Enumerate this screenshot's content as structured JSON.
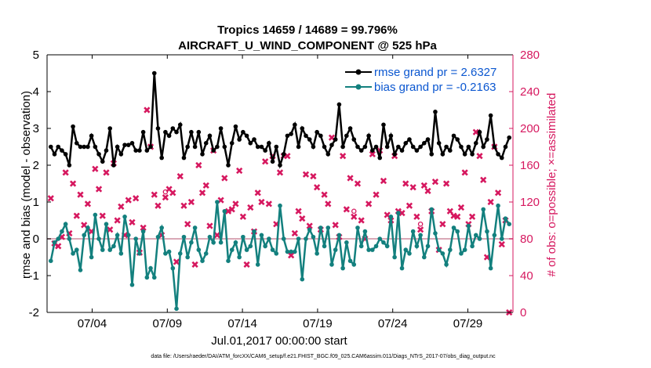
{
  "chart_data": {
    "type": "line",
    "title_line1": "Tropics 14659 / 14689 = 99.796%",
    "title_line2": "AIRCRAFT_U_WIND_COMPONENT @ 525 hPa",
    "xlabel": "Jul.01,2017 00:00:00 start",
    "ylabel_left": "rmse and bias (model - observation)",
    "ylabel_right": "# of obs: o=possible; ×=assimilated",
    "x_range_days": [
      0,
      31
    ],
    "ylim_left": [
      -2,
      5
    ],
    "ylim_right": [
      0,
      280
    ],
    "yticks_left": [
      "-2",
      "-1",
      "0",
      "1",
      "2",
      "3",
      "4",
      "5"
    ],
    "yticks_right": [
      "0",
      "40",
      "80",
      "120",
      "160",
      "200",
      "240",
      "280"
    ],
    "xticks": [
      {
        "day": 3.0,
        "label": "07/04"
      },
      {
        "day": 8.0,
        "label": "07/09"
      },
      {
        "day": 13.0,
        "label": "07/14"
      },
      {
        "day": 18.0,
        "label": "07/19"
      },
      {
        "day": 23.0,
        "label": "07/24"
      },
      {
        "day": 28.0,
        "label": "07/29"
      }
    ],
    "colors": {
      "rmse": "#000000",
      "bias": "#13807e",
      "obs": "#d6185f",
      "zero": "#d9a8b6"
    },
    "series": [
      {
        "name": "rmse grand pr = 2.6327",
        "values": [
          2.5,
          2.3,
          2.5,
          2.4,
          2.3,
          2.0,
          3.05,
          2.6,
          2.5,
          2.5,
          2.5,
          2.8,
          2.5,
          2.3,
          2.1,
          2.4,
          3.0,
          2.0,
          2.5,
          2.3,
          2.55,
          2.55,
          2.6,
          2.4,
          2.4,
          2.9,
          2.4,
          2.5,
          4.5,
          3.0,
          2.2,
          2.9,
          2.8,
          3.0,
          2.9,
          3.1,
          2.2,
          2.5,
          2.9,
          2.5,
          2.9,
          2.3,
          2.6,
          2.8,
          2.4,
          2.5,
          3.0,
          2.5,
          2.0,
          2.6,
          3.05,
          2.7,
          2.9,
          2.8,
          2.6,
          2.7,
          2.5,
          2.5,
          2.4,
          2.6,
          2.1,
          2.5,
          2.0,
          2.3,
          2.8,
          2.85,
          3.1,
          2.5,
          3.0,
          2.8,
          2.7,
          2.5,
          2.9,
          2.8,
          2.5,
          2.3,
          2.55,
          2.7,
          3.65,
          2.5,
          2.8,
          3.0,
          2.7,
          2.5,
          2.4,
          2.5,
          2.8,
          2.4,
          2.5,
          2.2,
          3.1,
          2.5,
          2.8,
          2.3,
          2.5,
          2.4,
          2.6,
          2.7,
          2.5,
          2.4,
          2.5,
          2.6,
          2.7,
          2.3,
          3.45,
          2.6,
          2.3,
          2.5,
          2.4,
          2.8,
          2.7,
          2.5,
          2.3,
          2.5,
          2.3,
          2.6,
          2.9,
          2.5,
          2.7,
          3.35,
          2.5,
          2.3,
          2.2,
          2.5,
          2.75
        ],
        "points_with_nan": [
          {
            "day": 14.0
          },
          {
            "day": 25.5
          }
        ]
      },
      {
        "name": "bias grand pr = -0.2163",
        "values": [
          -0.6,
          -0.1,
          0.0,
          0.2,
          0.4,
          0.0,
          -0.4,
          -0.3,
          -0.85,
          0.1,
          0.3,
          -0.5,
          0.65,
          0.0,
          -0.3,
          0.4,
          -0.3,
          -0.2,
          0.1,
          -0.4,
          0.6,
          0.1,
          -1.25,
          0.0,
          -0.4,
          0.2,
          -1.05,
          -0.8,
          -1.05,
          0.05,
          0.3,
          -0.4,
          -0.35,
          -0.8,
          -1.9,
          -0.4,
          0.05,
          -0.5,
          -0.1,
          0.3,
          -0.3,
          -0.6,
          -0.4,
          0.05,
          -0.1,
          1.0,
          -0.1,
          0.75,
          -0.6,
          -0.3,
          -0.1,
          -0.5,
          0.05,
          -0.3,
          -0.2,
          0.2,
          -0.7,
          0.1,
          -0.2,
          0.0,
          -0.3,
          -0.4,
          0.9,
          0.0,
          -0.35,
          -0.35,
          -0.35,
          0.0,
          -1.1,
          0.0,
          0.25,
          0.05,
          -0.4,
          0.3,
          -0.2,
          0.3,
          -0.7,
          -0.3,
          0.1,
          -0.8,
          -0.1,
          -0.6,
          -0.7,
          0.3,
          -0.2,
          0.2,
          -0.3,
          -0.3,
          -0.2,
          0.0,
          -0.1,
          -0.2,
          0.6,
          -0.5,
          0.7,
          -0.8,
          -0.3,
          -0.4,
          0.2,
          -0.2,
          0.1,
          -0.5,
          -0.2,
          0.8,
          0.15,
          -0.3,
          -0.4,
          -0.7,
          -0.3,
          0.3,
          0.2,
          -0.4,
          -0.3,
          0.35,
          -0.2,
          0.1,
          0.0,
          0.8,
          0.2,
          -0.8,
          0.1,
          0.9,
          0.0,
          0.55,
          0.4
        ]
      },
      {
        "name": "obs assimilated (×)",
        "values": [
          124,
          75,
          72,
          82,
          152,
          86,
          140,
          105,
          128,
          95,
          118,
          88,
          156,
          134,
          105,
          152,
          90,
          162,
          100,
          115,
          84,
          122,
          98,
          124,
          65,
          92,
          220,
          180,
          128,
          116,
          84,
          125,
          134,
          130,
          55,
          148,
          116,
          96,
          120,
          52,
          160,
          130,
          138,
          94,
          176,
          84,
          122,
          146,
          110,
          112,
          118,
          154,
          104,
          52,
          114,
          88,
          130,
          120,
          164,
          118,
          170,
          96,
          152,
          170,
          170,
          62,
          86,
          110,
          102,
          150,
          94,
          148,
          136,
          90,
          128,
          118,
          190,
          95,
          82,
          170,
          112,
          146,
          104,
          140,
          100,
          80,
          118,
          172,
          128,
          176,
          143,
          106,
          100,
          170,
          110,
          108,
          140,
          116,
          136,
          104,
          90,
          138,
          132,
          110,
          142,
          68,
          96,
          140,
          110,
          105,
          104,
          114,
          152,
          96,
          104,
          196,
          170,
          144,
          60,
          120,
          180,
          130,
          74,
          100,
          0
        ]
      },
      {
        "name": "obs possible (o)",
        "values": [
          124,
          75,
          72,
          82,
          152,
          86,
          140,
          105,
          128,
          95,
          118,
          88,
          156,
          134,
          105,
          152,
          90,
          162,
          100,
          115,
          84,
          122,
          98,
          124,
          65,
          92,
          220,
          180,
          128,
          116,
          84,
          125,
          134,
          130,
          55,
          148,
          116,
          96,
          120,
          52,
          160,
          130,
          138,
          94,
          176,
          84,
          122,
          146,
          110,
          112,
          118,
          154,
          104,
          52,
          114,
          88,
          130,
          120,
          164,
          118,
          170,
          96,
          152,
          170,
          170,
          62,
          86,
          110,
          102,
          150,
          94,
          148,
          136,
          90,
          128,
          118,
          190,
          95,
          82,
          170,
          112,
          146,
          104,
          140,
          100,
          80,
          118,
          172,
          128,
          176,
          143,
          106,
          100,
          170,
          110,
          108,
          140,
          116,
          136,
          104,
          90,
          138,
          132,
          110,
          142,
          68,
          96,
          140,
          110,
          105,
          104,
          114,
          152,
          96,
          104,
          196,
          170,
          144,
          60,
          120,
          180,
          130,
          74,
          100,
          0
        ]
      }
    ],
    "legend": [
      "rmse grand pr = 2.6327",
      "bias grand pr = -0.2163"
    ],
    "legend_location": "top-right"
  },
  "footnote": "data file: /Users/raeder/DAI/ATM_forcXX/CAM6_setup/f.e21.FHIST_BGC.f09_025.CAM6assim.011/Diags_NTrS_2017-07/obs_diag_output.nc"
}
